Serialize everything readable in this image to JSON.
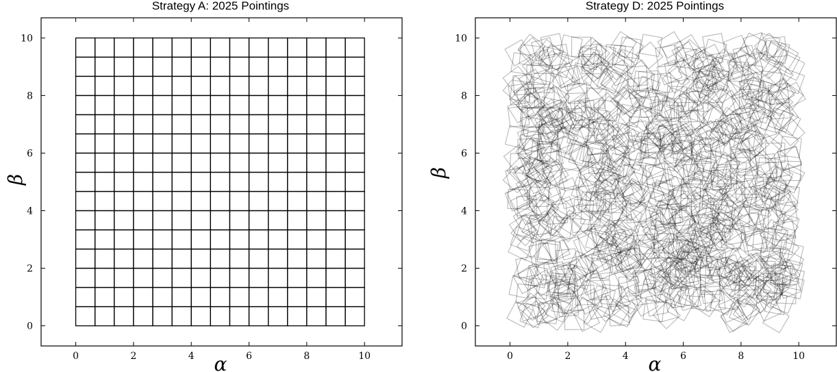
{
  "chart_data": [
    {
      "type": "scatter",
      "title": "Strategy A: 2025 Pointings",
      "xlabel": "α",
      "ylabel": "β",
      "xlim": [
        -1.2,
        11.3
      ],
      "ylim": [
        -0.7,
        10.7
      ],
      "xticks": [
        "0",
        "2",
        "4",
        "6",
        "8",
        "10"
      ],
      "yticks": [
        "0",
        "2",
        "4",
        "6",
        "8",
        "10"
      ],
      "grid": false,
      "pointing_pattern": "regular grid",
      "grid_cells_per_side": 15,
      "grid_extent": [
        0,
        10
      ],
      "edge_color": "#000000"
    },
    {
      "type": "scatter",
      "title": "Strategy D: 2025 Pointings",
      "xlabel": "α",
      "ylabel": "β",
      "xlim": [
        -1.2,
        11.3
      ],
      "ylim": [
        -0.7,
        10.7
      ],
      "xticks": [
        "0",
        "2",
        "4",
        "6",
        "8",
        "10"
      ],
      "yticks": [
        "0",
        "2",
        "4",
        "6",
        "8",
        "10"
      ],
      "grid": false,
      "pointing_pattern": "random positions and rotations",
      "region": [
        0,
        10
      ],
      "edge_color": "#000000",
      "edge_opacity": 0.28
    }
  ]
}
